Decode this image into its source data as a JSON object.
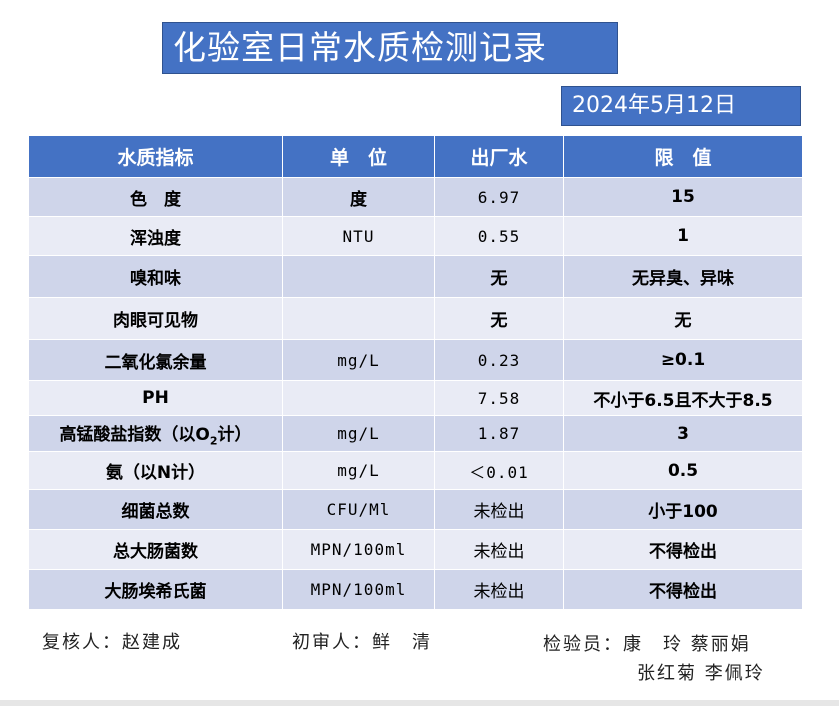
{
  "title": "化验室日常水质检测记录",
  "date": "2024年5月12日",
  "headers": [
    "水质指标",
    "单　位",
    "出厂水",
    "限　值"
  ],
  "rows": [
    {
      "name": "色　度",
      "unit": "度",
      "value": "6.97",
      "limit": "15"
    },
    {
      "name": "浑浊度",
      "unit": "NTU",
      "value": "0.55",
      "limit": "1"
    },
    {
      "name": "嗅和味",
      "unit": "",
      "value": "无",
      "limit": "无异臭、异味"
    },
    {
      "name": "肉眼可见物",
      "unit": "",
      "value": "无",
      "limit": "无"
    },
    {
      "name": "二氧化氯余量",
      "unit": "mg/L",
      "value": "0.23",
      "limit": "≥0.1"
    },
    {
      "name": "PH",
      "unit": "",
      "value": "7.58",
      "limit": "不小于6.5且不大于8.5"
    },
    {
      "name_pre": "高锰酸盐指数（以O",
      "name_sub": "2",
      "name_post": "计）",
      "unit": "mg/L",
      "value": "1.87",
      "limit": "3"
    },
    {
      "name": "氨（以N计）",
      "unit": "mg/L",
      "value": "＜0.01",
      "limit": "0.5"
    },
    {
      "name": "细菌总数",
      "unit": "CFU/Ml",
      "value": "未检出",
      "limit": "小于100"
    },
    {
      "name": "总大肠菌数",
      "unit": "MPN/100ml",
      "value": "未检出",
      "limit": "不得检出"
    },
    {
      "name": "大肠埃希氏菌",
      "unit": "MPN/100ml",
      "value": "未检出",
      "limit": "不得检出"
    }
  ],
  "footer": {
    "reviewer": "复核人：赵建成",
    "first_reviewer": "初审人：鲜　清",
    "inspectors_line1": "检验员：康　玲 蔡丽娟",
    "inspectors_line2": "张红菊 李佩玲"
  },
  "colors": {
    "header": "#4472c4",
    "row_dark": "#cfd5ea",
    "row_light": "#e9ebf5"
  }
}
